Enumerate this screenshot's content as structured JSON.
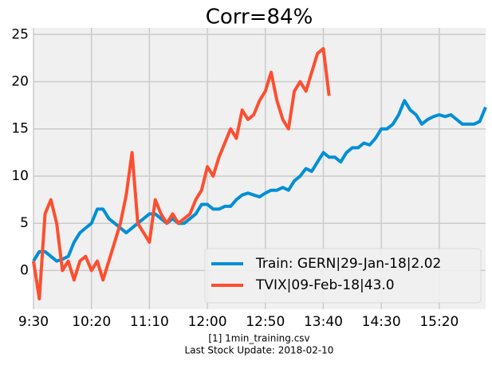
{
  "chart_data": {
    "type": "line",
    "title": "Corr=84%",
    "x": [
      "9:30",
      "9:35",
      "9:40",
      "9:45",
      "9:50",
      "9:55",
      "10:00",
      "10:05",
      "10:10",
      "10:15",
      "10:20",
      "10:25",
      "10:30",
      "10:35",
      "10:40",
      "10:45",
      "10:50",
      "10:55",
      "11:00",
      "11:05",
      "11:10",
      "11:15",
      "11:20",
      "11:25",
      "11:30",
      "11:35",
      "11:40",
      "11:45",
      "11:50",
      "11:55",
      "12:00",
      "12:05",
      "12:10",
      "12:15",
      "12:20",
      "12:25",
      "12:30",
      "12:35",
      "12:40",
      "12:45",
      "12:50",
      "12:55",
      "13:00",
      "13:05",
      "13:10",
      "13:15",
      "13:20",
      "13:25",
      "13:30",
      "13:35",
      "13:40",
      "13:45",
      "13:50",
      "13:55",
      "14:00",
      "14:05",
      "14:10",
      "14:15",
      "14:20",
      "14:25",
      "14:30",
      "14:35",
      "14:40",
      "14:45",
      "14:50",
      "14:55",
      "15:00",
      "15:05",
      "15:10",
      "15:15",
      "15:20",
      "15:25",
      "15:30",
      "15:35",
      "15:40",
      "15:45",
      "15:50",
      "15:55",
      "16:00"
    ],
    "series": [
      {
        "name": "Train: GERN|29-Jan-18|2.02",
        "color": "#008fd5",
        "values": [
          1,
          2,
          2,
          1.5,
          1,
          1.2,
          1.5,
          3,
          4,
          4.5,
          5,
          6.5,
          6.5,
          5.5,
          5,
          4.5,
          4,
          4.5,
          5,
          5.5,
          6,
          6,
          5.5,
          5,
          5.5,
          5,
          5,
          5.5,
          6,
          7,
          7,
          6.5,
          6.5,
          6.8,
          6.8,
          7.5,
          8,
          8.2,
          8,
          7.8,
          8.2,
          8.5,
          8.5,
          8.8,
          8.5,
          9.5,
          10,
          10.8,
          10.5,
          11.5,
          12.5,
          12,
          12,
          11.5,
          12.5,
          13,
          13,
          13.5,
          13.3,
          14,
          15,
          15,
          15.5,
          16.5,
          18,
          17,
          16.5,
          15.5,
          16,
          16.3,
          16.5,
          16.3,
          16.5,
          16,
          15.5,
          15.5,
          15.5,
          15.8,
          17.3
        ]
      },
      {
        "name": "TVIX|09-Feb-18|43.0",
        "color": "#fc4f30",
        "values": [
          1,
          -3,
          6,
          7.5,
          5,
          0,
          1,
          -1,
          1,
          1.5,
          0,
          1,
          -1,
          1,
          3,
          5,
          8,
          12.5,
          5,
          4,
          3,
          7.5,
          6,
          5,
          6,
          5,
          5.5,
          6,
          7.5,
          8.5,
          11,
          10,
          12,
          13.5,
          15,
          14,
          17,
          16,
          16.5,
          18,
          19,
          21,
          18,
          16,
          15,
          19,
          20,
          19,
          21,
          23,
          23.5,
          18.5,
          null,
          null,
          null,
          null,
          null,
          null,
          null,
          null,
          null,
          null,
          null,
          null,
          null,
          null,
          null,
          null,
          null,
          null,
          null,
          null,
          null,
          null,
          null,
          null,
          null,
          null,
          null
        ]
      }
    ],
    "xlim": [
      "9:30",
      "16:00"
    ],
    "xticks": [
      "9:30",
      "10:20",
      "11:10",
      "12:00",
      "12:50",
      "13:40",
      "14:30",
      "15:20"
    ],
    "ylim": [
      -4.1,
      25.7
    ],
    "yticks": [
      0,
      5,
      10,
      15,
      20,
      25
    ],
    "grid": true,
    "legend": "lower right",
    "footer": [
      "[1] 1min_training.csv",
      "Last Stock Update: 2018-02-10"
    ]
  }
}
